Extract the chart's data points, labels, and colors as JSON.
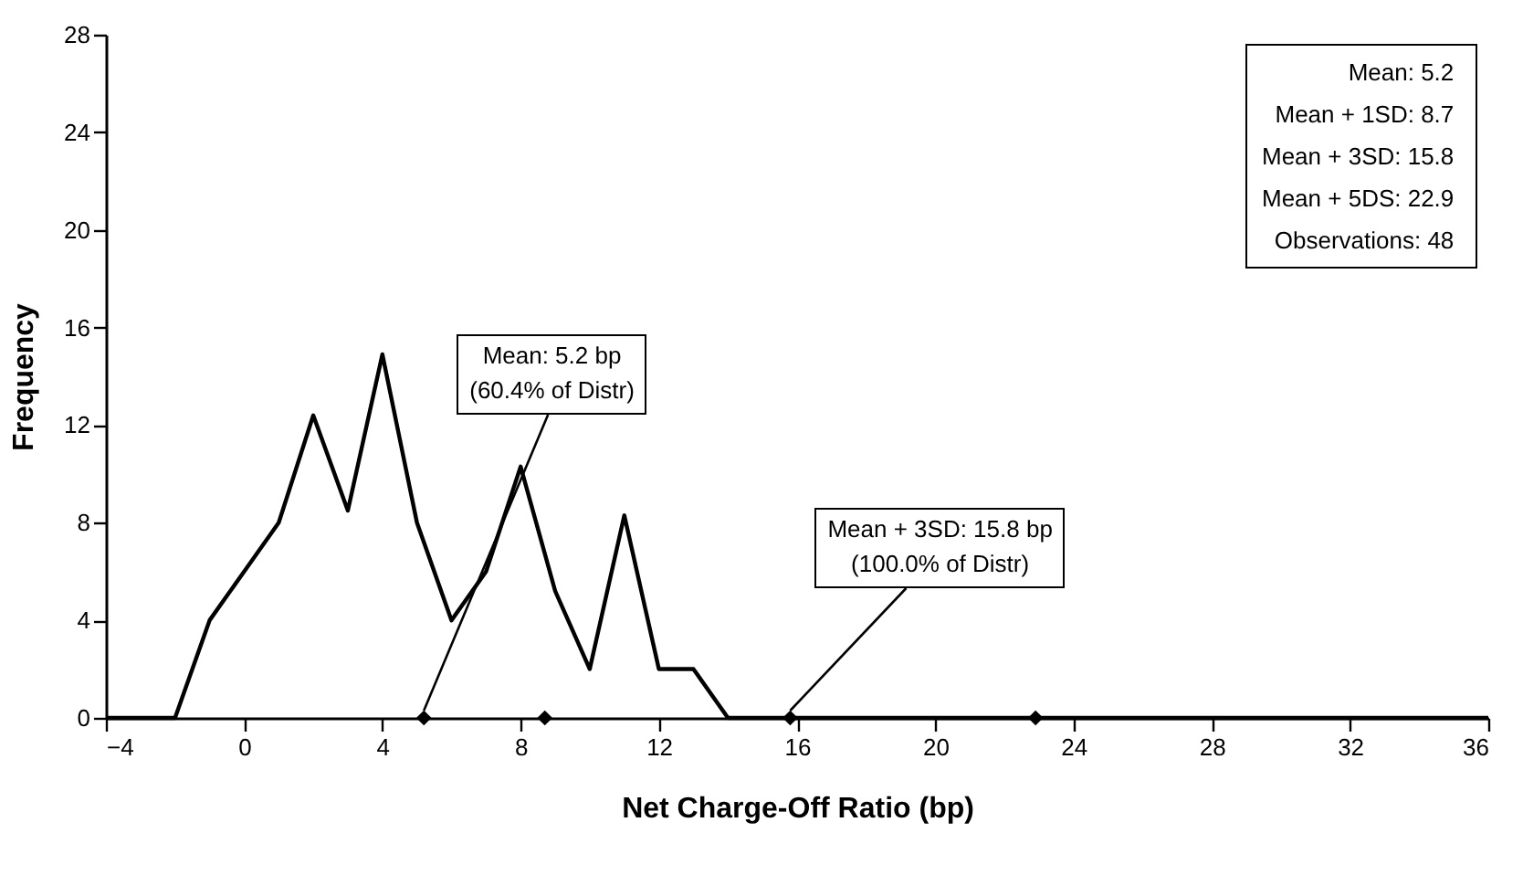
{
  "chart_data": {
    "type": "line",
    "xlabel": "Net Charge-Off Ratio (bp)",
    "ylabel": "Frequency",
    "xlim": [
      -4,
      36
    ],
    "xticks": [
      -4,
      0,
      4,
      8,
      12,
      16,
      20,
      24,
      28,
      32,
      36
    ],
    "ylim": [
      0,
      28
    ],
    "yticks": [
      0,
      4,
      8,
      12,
      16,
      20,
      24,
      28
    ],
    "grid": false,
    "series": [
      {
        "color": "#000000",
        "marker": "none",
        "x": [
          -4,
          -2,
          -1,
          0,
          1,
          2,
          3,
          4,
          5,
          6,
          7,
          8,
          9,
          10,
          11,
          12,
          13,
          14,
          36
        ],
        "values": [
          0,
          0,
          4,
          6,
          8,
          12.4,
          8.5,
          14.9,
          8,
          4,
          6,
          10.3,
          5.2,
          2,
          8.3,
          2,
          2,
          0,
          0
        ]
      },
      {
        "type": "scatter",
        "color": "#000000",
        "marker": "diamond",
        "x": [
          5.2,
          8.7,
          15.8,
          22.9
        ],
        "values": [
          0,
          0,
          0,
          0
        ]
      }
    ],
    "annotations": [
      {
        "text": "Mean: 5.2 bp\n(60.4% of Distr)",
        "x": 5.2,
        "y": 0
      },
      {
        "text": "Mean + 3SD: 15.8 bp\n(100.0% of Distr)",
        "x": 15.8,
        "y": 0
      },
      "Mean: 5.2",
      "Mean + 1SD: 8.7",
      "Mean + 3SD: 15.8",
      "Mean + 5DS: 22.9",
      "Observations: 48"
    ]
  }
}
